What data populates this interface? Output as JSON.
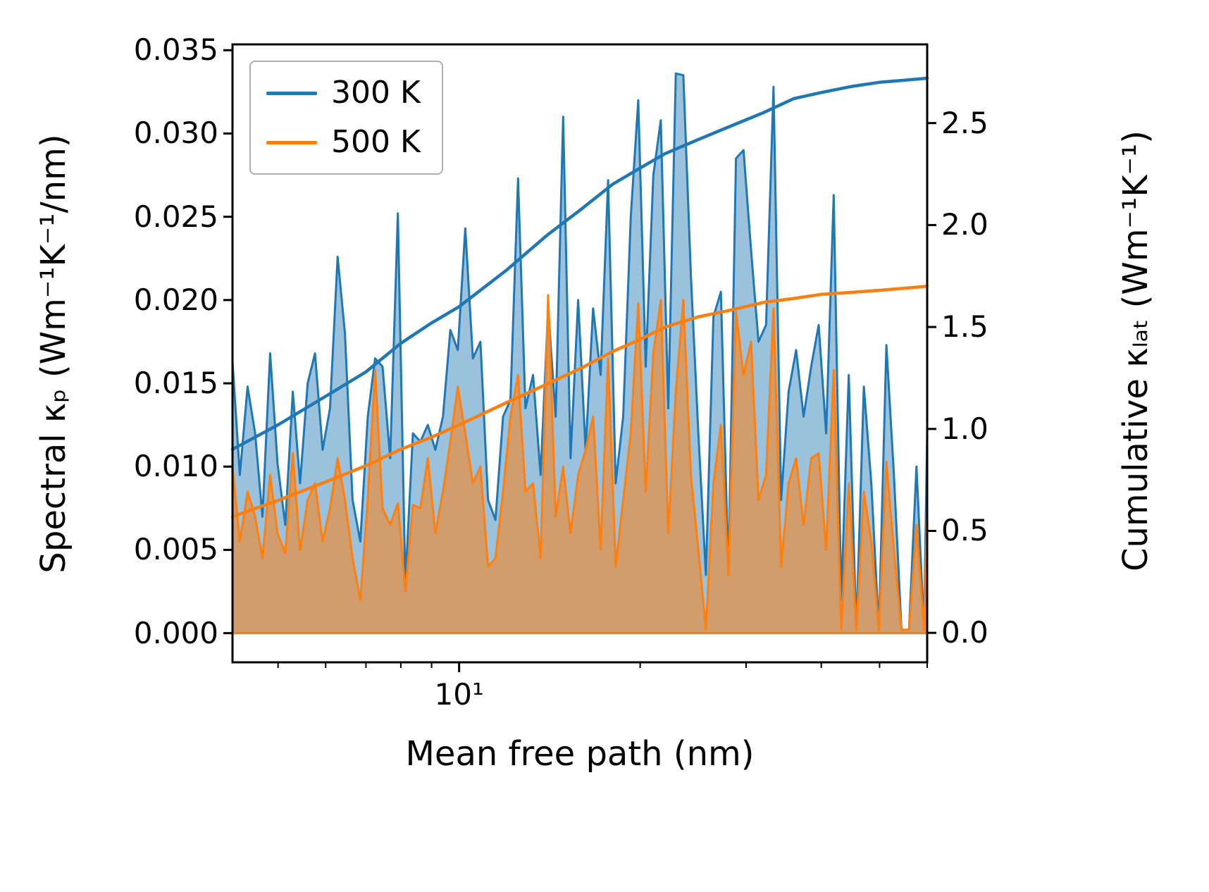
{
  "figure": {
    "background": "#ffffff"
  },
  "axes": {
    "xlabel": "Mean free path (nm)",
    "ylabel_left": "Spectral κₚ (Wm⁻¹K⁻¹/nm)",
    "ylabel_right": "Cumulative κₗₐₜ (Wm⁻¹K⁻¹)",
    "x_scale": "log",
    "xlim": [
      4.2,
      60
    ],
    "ylim_left": [
      -0.00175,
      0.03535
    ],
    "ylim_right": [
      -0.1445,
      2.886
    ],
    "frame_color": "#000000",
    "x_major_ticks": [
      {
        "value": 10,
        "label": "10¹"
      }
    ],
    "x_minor_ticks": [
      5,
      6,
      7,
      8,
      9,
      20,
      30,
      40,
      50,
      60
    ],
    "y_left_ticks": [
      {
        "value": 0.0,
        "label": "0.000"
      },
      {
        "value": 0.005,
        "label": "0.005"
      },
      {
        "value": 0.01,
        "label": "0.010"
      },
      {
        "value": 0.015,
        "label": "0.015"
      },
      {
        "value": 0.02,
        "label": "0.020"
      },
      {
        "value": 0.025,
        "label": "0.025"
      },
      {
        "value": 0.03,
        "label": "0.030"
      },
      {
        "value": 0.035,
        "label": "0.035"
      }
    ],
    "y_right_ticks": [
      {
        "value": 0.0,
        "label": "0.0"
      },
      {
        "value": 0.5,
        "label": "0.5"
      },
      {
        "value": 1.0,
        "label": "1.0"
      },
      {
        "value": 1.5,
        "label": "1.5"
      },
      {
        "value": 2.0,
        "label": "2.0"
      },
      {
        "value": 2.5,
        "label": "2.5"
      }
    ]
  },
  "legend": {
    "items": [
      {
        "label": "300 K",
        "color": "#1f77b4"
      },
      {
        "label": "500 K",
        "color": "#ff7f0e"
      }
    ]
  },
  "chart_data": {
    "type": "area",
    "title": "",
    "xlabel": "Mean free path (nm)",
    "ylabel": "Spectral κₚ (Wm⁻¹K⁻¹/nm)",
    "ylabel2": "Cumulative κₗₐₜ (Wm⁻¹K⁻¹)",
    "x_scale": "log",
    "xlim": [
      4.2,
      60
    ],
    "ylim_left": [
      -0.00175,
      0.03535
    ],
    "ylim_right": [
      -0.1445,
      2.886
    ],
    "legend_position": "upper left",
    "grid": false,
    "x_spectral": [
      4.2,
      4.32,
      4.45,
      4.58,
      4.71,
      4.85,
      4.99,
      5.14,
      5.29,
      5.44,
      5.6,
      5.76,
      5.93,
      6.1,
      6.28,
      6.46,
      6.65,
      6.85,
      7.05,
      7.25,
      7.46,
      7.68,
      7.91,
      8.14,
      8.38,
      8.62,
      8.87,
      9.13,
      9.4,
      9.67,
      9.95,
      10.24,
      10.54,
      10.85,
      11.17,
      11.49,
      11.83,
      12.17,
      12.53,
      12.89,
      13.27,
      13.66,
      14.06,
      14.47,
      14.89,
      15.32,
      15.77,
      16.23,
      16.7,
      17.19,
      17.69,
      18.21,
      18.74,
      19.29,
      19.85,
      20.43,
      21.03,
      21.64,
      22.27,
      22.92,
      23.59,
      24.28,
      24.99,
      25.72,
      26.47,
      27.24,
      28.04,
      28.86,
      29.7,
      30.57,
      31.46,
      32.38,
      33.32,
      34.3,
      35.3,
      36.33,
      37.39,
      38.48,
      39.61,
      40.76,
      41.95,
      43.18,
      44.44,
      45.74,
      47.08,
      48.45,
      49.87,
      51.33,
      52.83,
      54.37,
      55.96,
      57.59,
      59.28,
      60.0
    ],
    "x_cumulative": [
      4.2,
      5,
      6,
      7,
      8,
      9,
      10,
      12,
      14,
      16,
      18,
      20,
      22,
      25,
      28,
      32,
      36,
      40,
      45,
      50,
      55,
      60
    ],
    "series": [
      {
        "name": "300 K spectral",
        "axis": "left",
        "style": "area",
        "color": "#1f77b4",
        "fill_alpha": 0.45,
        "values": [
          0.0163,
          0.0095,
          0.0148,
          0.012,
          0.007,
          0.0168,
          0.0102,
          0.0065,
          0.0145,
          0.009,
          0.015,
          0.0168,
          0.011,
          0.0135,
          0.0226,
          0.018,
          0.008,
          0.0055,
          0.013,
          0.0165,
          0.016,
          0.0105,
          0.0252,
          0.003,
          0.012,
          0.0115,
          0.0125,
          0.011,
          0.013,
          0.0182,
          0.017,
          0.0243,
          0.0165,
          0.0175,
          0.008,
          0.0068,
          0.013,
          0.014,
          0.0273,
          0.0135,
          0.0155,
          0.0095,
          0.0195,
          0.013,
          0.031,
          0.0105,
          0.02,
          0.011,
          0.0195,
          0.0155,
          0.0272,
          0.009,
          0.013,
          0.025,
          0.032,
          0.016,
          0.0275,
          0.0308,
          0.0135,
          0.0336,
          0.0335,
          0.0215,
          0.012,
          0.0035,
          0.019,
          0.0205,
          0.0035,
          0.0285,
          0.029,
          0.023,
          0.0175,
          0.0185,
          0.0328,
          0.008,
          0.0145,
          0.017,
          0.013,
          0.016,
          0.0185,
          0.012,
          0.0263,
          0.002,
          0.0155,
          0.0002,
          0.0148,
          0.009,
          0.0002,
          0.0173,
          0.0095,
          0.0002,
          0.0002,
          0.01,
          0.0002,
          0.012
        ]
      },
      {
        "name": "500 K spectral",
        "axis": "left",
        "style": "area",
        "color": "#ff7f0e",
        "fill_alpha": 0.55,
        "values": [
          0.01,
          0.0055,
          0.0085,
          0.007,
          0.0045,
          0.0095,
          0.006,
          0.0048,
          0.0108,
          0.005,
          0.008,
          0.009,
          0.0055,
          0.0075,
          0.0105,
          0.008,
          0.0045,
          0.002,
          0.008,
          0.0158,
          0.0075,
          0.0065,
          0.0078,
          0.0025,
          0.0077,
          0.0075,
          0.0105,
          0.006,
          0.0085,
          0.0115,
          0.0148,
          0.012,
          0.009,
          0.01,
          0.004,
          0.0045,
          0.0085,
          0.013,
          0.0155,
          0.0085,
          0.009,
          0.0045,
          0.0203,
          0.007,
          0.01,
          0.006,
          0.0095,
          0.011,
          0.013,
          0.005,
          0.0165,
          0.004,
          0.008,
          0.012,
          0.0198,
          0.0085,
          0.0168,
          0.02,
          0.006,
          0.0145,
          0.02,
          0.0095,
          0.005,
          0.0002,
          0.009,
          0.0125,
          0.0035,
          0.0193,
          0.0155,
          0.0175,
          0.008,
          0.0095,
          0.0195,
          0.004,
          0.009,
          0.0105,
          0.0065,
          0.0105,
          0.0108,
          0.005,
          0.0158,
          0.0002,
          0.009,
          0.0002,
          0.0085,
          0.0055,
          0.0002,
          0.0103,
          0.005,
          0.0002,
          0.0002,
          0.0065,
          0.0002,
          0.0073
        ]
      },
      {
        "name": "300 K cumulative",
        "axis": "right",
        "style": "line",
        "color": "#1f77b4",
        "values": [
          0.9,
          1.02,
          1.16,
          1.28,
          1.42,
          1.52,
          1.6,
          1.78,
          1.95,
          2.08,
          2.2,
          2.28,
          2.35,
          2.42,
          2.48,
          2.55,
          2.62,
          2.65,
          2.68,
          2.7,
          2.71,
          2.72
        ]
      },
      {
        "name": "500 K cumulative",
        "axis": "right",
        "style": "line",
        "color": "#ff7f0e",
        "values": [
          0.57,
          0.65,
          0.74,
          0.82,
          0.9,
          0.96,
          1.02,
          1.13,
          1.22,
          1.3,
          1.38,
          1.44,
          1.5,
          1.55,
          1.58,
          1.62,
          1.64,
          1.66,
          1.67,
          1.68,
          1.69,
          1.7
        ]
      }
    ]
  }
}
